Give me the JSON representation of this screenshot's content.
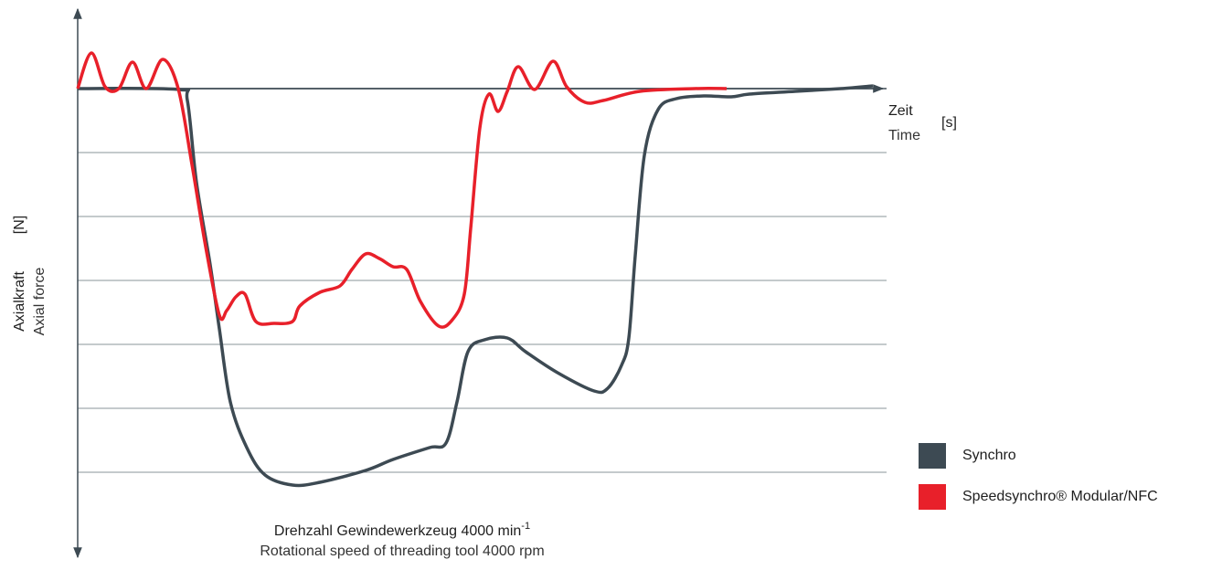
{
  "chart_data": {
    "type": "line",
    "x_label": "Drehzahl Gewindewerkzeug 4000 min",
    "x_label_superscript": "-1",
    "x_label_en": "Rotational speed of threading tool 4000 rpm",
    "x_axis_label": "Zeit",
    "x_axis_label_en": "Time",
    "x_axis_unit": "[s]",
    "y_axis_label": "Axialkraft",
    "y_axis_label_en": "Axial force",
    "y_axis_unit": "[N]",
    "xlim": [
      0,
      88.5
    ],
    "ylim": [
      -51.3,
      8.7
    ],
    "yticks": [
      0,
      -7,
      -14,
      -21,
      -28,
      -35,
      -42
    ],
    "grid": true,
    "series": [
      {
        "name": "Synchro",
        "color": "#3d4a53",
        "x": [
          0,
          11,
          12,
          13,
          14.5,
          15.5,
          16.7,
          18.5,
          20.5,
          23.5,
          26.5,
          31.5,
          34.5,
          38.5,
          40.3,
          41.5,
          42.7,
          44.5,
          47,
          49,
          52.5,
          56.5,
          58,
          59.5,
          60.3,
          61,
          62,
          63.5,
          65.5,
          68.5,
          71.5,
          73.5,
          78.5,
          83.5,
          87
        ],
        "values": [
          0,
          -0.1,
          -1.3,
          -10.3,
          -19.3,
          -26.3,
          -34.3,
          -39.3,
          -42.3,
          -43.4,
          -43.1,
          -41.8,
          -40.6,
          -39.3,
          -38.8,
          -34.3,
          -28.8,
          -27.5,
          -27.3,
          -28.8,
          -31.1,
          -33.1,
          -32.8,
          -30.3,
          -27.3,
          -18.3,
          -7.3,
          -2.3,
          -1.1,
          -0.8,
          -0.9,
          -0.6,
          -0.3,
          0,
          0.3
        ]
      },
      {
        "name": "Speedsynchro® Modular/NFC",
        "color": "#e8202a",
        "x": [
          0,
          1.5,
          3,
          4.5,
          6,
          7.5,
          9.3,
          11,
          12.5,
          14,
          15.5,
          16.3,
          17.3,
          18.3,
          19.5,
          21.5,
          23.5,
          24.3,
          26.5,
          28.7,
          30,
          31.5,
          33,
          34.5,
          36,
          37.5,
          39.5,
          41,
          42.3,
          43,
          44,
          45,
          46,
          47,
          48.2,
          50,
          52,
          53.5,
          55.5,
          57.5,
          61.5,
          67.5,
          71
        ],
        "values": [
          0,
          3.9,
          0.2,
          0,
          2.9,
          0,
          3.2,
          0,
          -8.3,
          -17.3,
          -24.8,
          -24.3,
          -22.8,
          -22.5,
          -25.5,
          -25.7,
          -25.5,
          -23.8,
          -22.3,
          -21.6,
          -19.8,
          -18.1,
          -18.6,
          -19.5,
          -19.8,
          -23.3,
          -26,
          -25.3,
          -22.5,
          -15.3,
          -4.3,
          -0.6,
          -2.5,
          -0.3,
          2.4,
          -0.1,
          3,
          0.2,
          -1.5,
          -1.3,
          -0.3,
          0,
          0
        ]
      }
    ]
  }
}
